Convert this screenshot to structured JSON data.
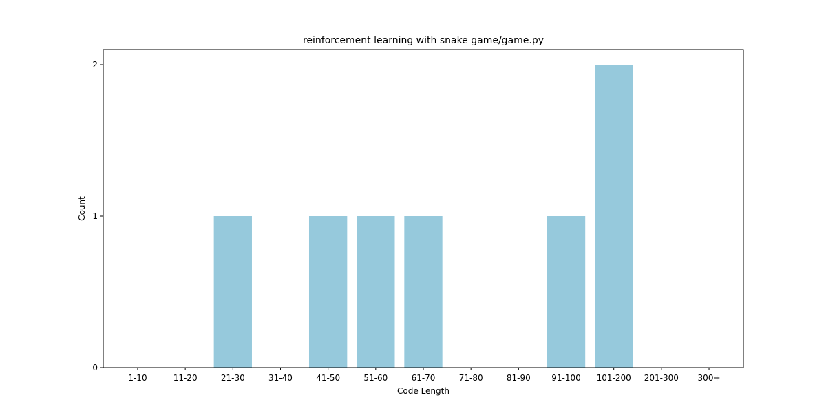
{
  "chart_data": {
    "type": "bar",
    "title": "reinforcement learning with snake game/game.py",
    "xlabel": "Code Length",
    "ylabel": "Count",
    "categories": [
      "1-10",
      "11-20",
      "21-30",
      "31-40",
      "41-50",
      "51-60",
      "61-70",
      "71-80",
      "81-90",
      "91-100",
      "101-200",
      "201-300",
      "300+"
    ],
    "values": [
      0,
      0,
      1,
      0,
      1,
      1,
      1,
      0,
      0,
      1,
      2,
      0,
      0
    ],
    "ylim": [
      0,
      2.1
    ],
    "yticks": [
      0,
      1,
      2
    ],
    "grid": false,
    "bar_color": "#96c9dc"
  }
}
